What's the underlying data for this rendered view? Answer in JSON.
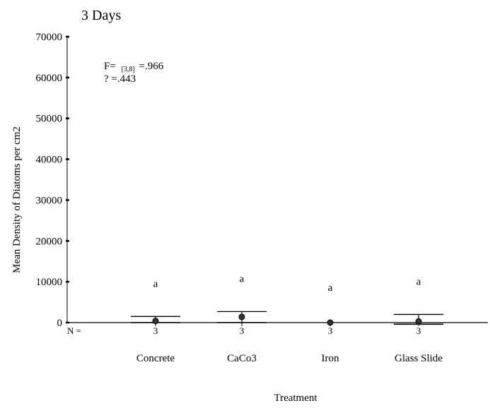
{
  "chart_data": {
    "type": "scatter",
    "title": "3 Days",
    "xlabel": "Treatment",
    "ylabel": "Mean Density of Diatoms per cm2",
    "ylim": [
      0,
      70000
    ],
    "yticks": [
      0,
      10000,
      20000,
      30000,
      40000,
      50000,
      60000,
      70000
    ],
    "ytick_labels": [
      "0",
      "10000",
      "20000",
      "30000",
      "40000",
      "50000",
      "60000",
      "70000"
    ],
    "grid": false,
    "categories": [
      "Concrete",
      "CaCo3",
      "Iron",
      "Glass Slide"
    ],
    "n_label": "N =",
    "n_values": [
      "3",
      "3",
      "3",
      "3"
    ],
    "group_letters": [
      "a",
      "a",
      "a",
      "a"
    ],
    "means": [
      400,
      1400,
      0,
      300
    ],
    "error_upper": [
      1500,
      2700,
      0,
      2000
    ],
    "error_lower": [
      0,
      0,
      0,
      -400
    ],
    "stats": {
      "f_label": "F=",
      "f_sub": "[3,8]",
      "f_value": "=.966",
      "p_label": "? =.443"
    }
  }
}
